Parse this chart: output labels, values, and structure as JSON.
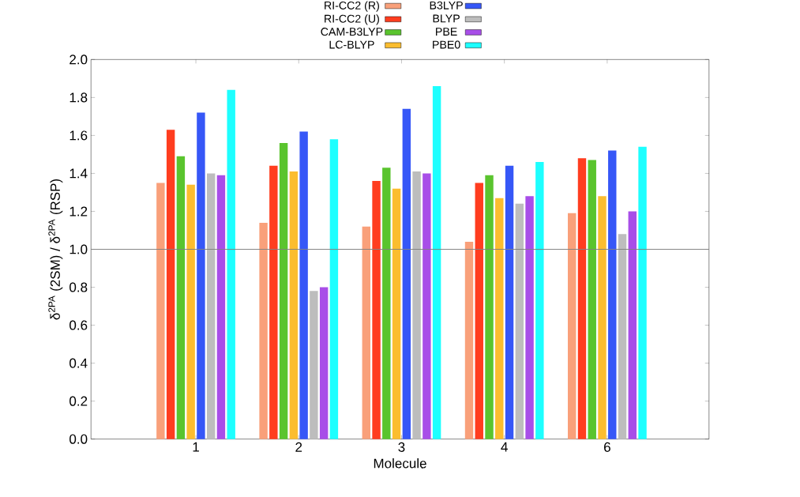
{
  "chart_data": {
    "type": "bar",
    "xlabel": "Molecule",
    "ylabel": "δ$^{2PA}$ (2SM) / δ$^{2PA}$ (RSP)",
    "categories": [
      "1",
      "2",
      "3",
      "4",
      "6"
    ],
    "series": [
      {
        "name": "RI-CC2 (R)",
        "color": "#f9a07a",
        "values": [
          1.35,
          1.14,
          1.12,
          1.04,
          1.19
        ]
      },
      {
        "name": "RI-CC2 (U)",
        "color": "#ff3d1f",
        "values": [
          1.63,
          1.44,
          1.36,
          1.35,
          1.48
        ]
      },
      {
        "name": "CAM-B3LYP",
        "color": "#5ac42e",
        "values": [
          1.49,
          1.56,
          1.43,
          1.39,
          1.47
        ]
      },
      {
        "name": "LC-BLYP",
        "color": "#fbbd2f",
        "values": [
          1.34,
          1.41,
          1.32,
          1.27,
          1.28
        ]
      },
      {
        "name": "B3LYP",
        "color": "#3657f7",
        "values": [
          1.72,
          1.62,
          1.74,
          1.44,
          1.52
        ]
      },
      {
        "name": "BLYP",
        "color": "#bdbdbd",
        "values": [
          1.4,
          0.78,
          1.41,
          1.24,
          1.08
        ]
      },
      {
        "name": "PBE",
        "color": "#a84ee8",
        "values": [
          1.39,
          0.8,
          1.4,
          1.28,
          1.2
        ]
      },
      {
        "name": "PBE0",
        "color": "#1dffff",
        "values": [
          1.84,
          1.58,
          1.86,
          1.46,
          1.54
        ]
      }
    ],
    "ylim": [
      0,
      2.0
    ],
    "yticks": [
      {
        "value": 0,
        "label": "0.0"
      },
      0.2,
      0.4,
      0.6,
      0.8,
      {
        "value": 1.0,
        "label": "1.0"
      },
      1.2,
      1.4,
      1.6,
      1.8,
      {
        "value": 2.0,
        "label": "2.0"
      }
    ],
    "ref_lines": [
      {
        "axis": "y",
        "value": 1.0,
        "color": "#808080"
      }
    ],
    "legend": "top",
    "grid": false
  }
}
